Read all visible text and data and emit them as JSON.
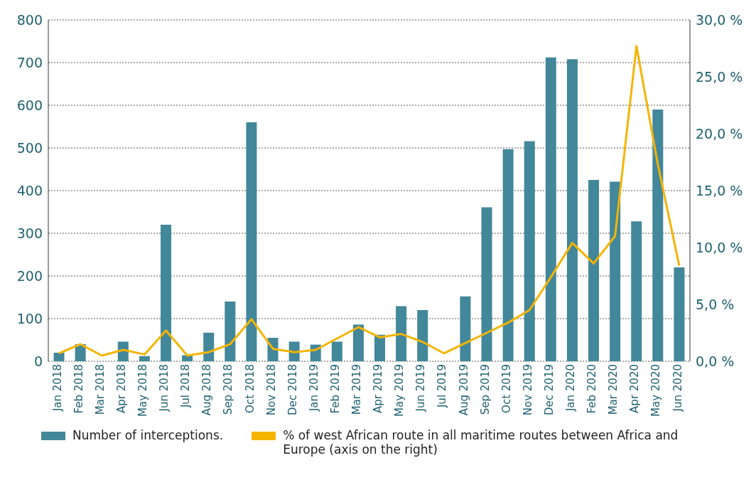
{
  "chart_data": {
    "type": "bar",
    "categories": [
      "Jan 2018",
      "Feb 2018",
      "Mar 2018",
      "Apr 2018",
      "May 2018",
      "Jun 2018",
      "Jul 2018",
      "Aug 2018",
      "Sep 2018",
      "Oct 2018",
      "Nov 2018",
      "Dec 2018",
      "Jan 2019",
      "Feb 2019",
      "Mar 2019",
      "Apr 2019",
      "May 2019",
      "Jun 2019",
      "Jul 2019",
      "Aug 2019",
      "Sep 2019",
      "Oct 2019",
      "Nov 2019",
      "Dec 2019",
      "Jan 2020",
      "Feb 2020",
      "Mar 2020",
      "Apr 2020",
      "May 2020",
      "Jun 2020"
    ],
    "series": [
      {
        "name": "Number of interceptions.",
        "color": "#42879a",
        "values": [
          20,
          40,
          0,
          46,
          12,
          320,
          14,
          67,
          140,
          560,
          55,
          46,
          39,
          46,
          86,
          62,
          129,
          120,
          0,
          152,
          361,
          497,
          516,
          712,
          708,
          425,
          421,
          328,
          590,
          220
        ]
      },
      {
        "name": "% of west African route in all maritime routes between Africa and Europe (axis on the right)",
        "type": "line",
        "axis": "y2",
        "color": "#f5b400",
        "values": [
          0.7,
          1.5,
          0.5,
          1.0,
          0.6,
          2.7,
          0.5,
          0.8,
          1.5,
          3.7,
          1.1,
          0.8,
          1.0,
          2.0,
          3.0,
          2.1,
          2.4,
          1.7,
          0.7,
          1.6,
          2.5,
          3.4,
          4.5,
          7.4,
          10.4,
          8.6,
          11.0,
          27.7,
          17.3,
          8.4
        ]
      }
    ],
    "ylim": [
      0,
      800
    ],
    "yticks": [
      0,
      100,
      200,
      300,
      400,
      500,
      600,
      700,
      800
    ],
    "y2lim": [
      0,
      30
    ],
    "y2ticks": [
      {
        "value": 0,
        "label": "0,0 %"
      },
      {
        "value": 5,
        "label": "5,0 %"
      },
      {
        "value": 10,
        "label": "10,0 %"
      },
      {
        "value": 15,
        "label": "15,0 %"
      },
      {
        "value": 20,
        "label": "20,0 %"
      },
      {
        "value": 25,
        "label": "25,0 %"
      },
      {
        "value": 30,
        "label": "30,0 %"
      }
    ],
    "grid": "y",
    "legend": "bottom",
    "marker": "none",
    "line_style": "solid"
  }
}
